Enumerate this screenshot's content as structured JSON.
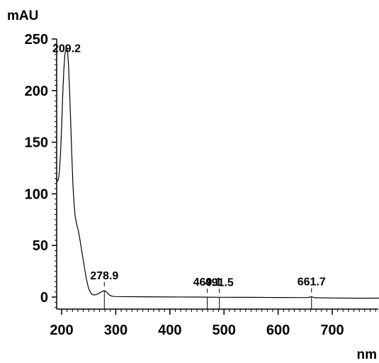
{
  "chart_data": {
    "type": "line",
    "ylabel": "mAU",
    "xlabel": "nm",
    "xlim": [
      190,
      800
    ],
    "ylim": [
      -10,
      253
    ],
    "x_ticks": [
      "200",
      "300",
      "400",
      "500",
      "600",
      "700"
    ],
    "y_ticks": [
      "0",
      "50",
      "100",
      "150",
      "200",
      "250"
    ],
    "grid": false,
    "series": [
      {
        "color": "#000000",
        "points": [
          [
            190,
            115
          ],
          [
            192,
            112
          ],
          [
            194,
            114
          ],
          [
            196,
            122
          ],
          [
            198,
            140
          ],
          [
            200,
            165
          ],
          [
            202,
            195
          ],
          [
            204,
            220
          ],
          [
            206,
            235
          ],
          [
            208,
            241
          ],
          [
            209.2,
            242
          ],
          [
            211,
            238
          ],
          [
            213,
            222
          ],
          [
            215,
            195
          ],
          [
            217,
            165
          ],
          [
            219,
            135
          ],
          [
            221,
            108
          ],
          [
            223,
            90
          ],
          [
            225,
            78
          ],
          [
            228,
            70
          ],
          [
            231,
            64
          ],
          [
            234,
            55
          ],
          [
            238,
            42
          ],
          [
            242,
            29
          ],
          [
            246,
            17
          ],
          [
            250,
            8
          ],
          [
            255,
            3
          ],
          [
            260,
            2
          ],
          [
            265,
            2.5
          ],
          [
            270,
            4
          ],
          [
            275,
            5.5
          ],
          [
            278.9,
            6.2
          ],
          [
            283,
            5
          ],
          [
            288,
            2
          ],
          [
            293,
            0.8
          ],
          [
            300,
            0.5
          ],
          [
            350,
            0.3
          ],
          [
            400,
            0.1
          ],
          [
            450,
            0
          ],
          [
            469.1,
            -0.1
          ],
          [
            491.5,
            -0.2
          ],
          [
            500,
            -0.2
          ],
          [
            550,
            -0.3
          ],
          [
            600,
            -0.4
          ],
          [
            640,
            -0.5
          ],
          [
            655,
            -0.4
          ],
          [
            661.7,
            0.3
          ],
          [
            668,
            -0.6
          ],
          [
            700,
            -0.9
          ],
          [
            750,
            -1.1
          ],
          [
            800,
            -1.0
          ]
        ]
      }
    ],
    "peaks": [
      {
        "x": 209.2,
        "label": "209.2"
      },
      {
        "x": 278.9,
        "label": "278.9"
      },
      {
        "x": 469.1,
        "label": "469.1"
      },
      {
        "x": 491.5,
        "label": "491.5"
      },
      {
        "x": 661.7,
        "label": "661.7"
      }
    ]
  }
}
